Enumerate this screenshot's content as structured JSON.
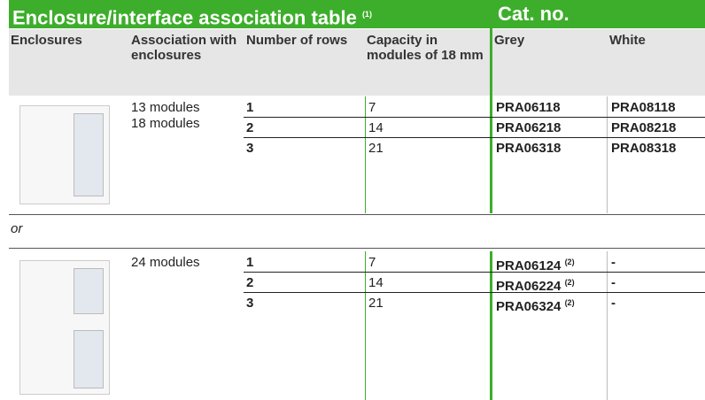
{
  "header": {
    "title": "Enclosure/interface association table",
    "title_note": "(1)",
    "catalog": "Cat. no."
  },
  "columns": [
    "Enclosures",
    "Association with enclosures",
    "Number of rows",
    "Capacity in modules of 18 mm",
    "Grey",
    "White"
  ],
  "groups": [
    {
      "associations": [
        "13 modules",
        "18 modules"
      ],
      "rows": [
        {
          "rows": 1,
          "capacity": 7,
          "grey": "PRA06118",
          "white": "PRA08118"
        },
        {
          "rows": 2,
          "capacity": 14,
          "grey": "PRA06218",
          "white": "PRA08218"
        },
        {
          "rows": 3,
          "capacity": 21,
          "grey": "PRA06318",
          "white": "PRA08318"
        }
      ]
    },
    {
      "associations": [
        "24 modules"
      ],
      "rows": [
        {
          "rows": 1,
          "capacity": 7,
          "grey": "PRA06124",
          "grey_note": "(2)",
          "white": "-"
        },
        {
          "rows": 2,
          "capacity": 14,
          "grey": "PRA06224",
          "grey_note": "(2)",
          "white": "-"
        },
        {
          "rows": 3,
          "capacity": 21,
          "grey": "PRA06324",
          "grey_note": "(2)",
          "white": "-"
        }
      ]
    }
  ],
  "separator": "or"
}
